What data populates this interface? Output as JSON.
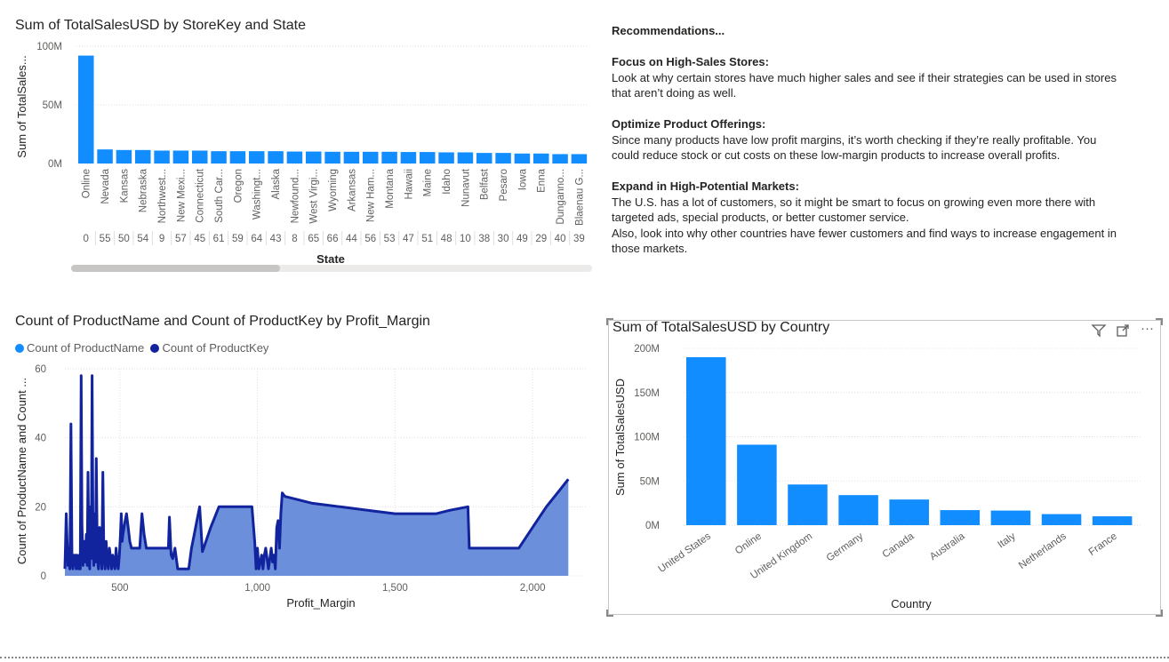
{
  "store_chart": {
    "chart_data": {
      "type": "bar",
      "title": "Sum of TotalSalesUSD by StoreKey and State",
      "xlabel": "State",
      "ylabel": "Sum of TotalSales...",
      "ylim": [
        0,
        100
      ],
      "y_ticks": [
        "100M",
        "50M",
        "0M"
      ],
      "categories": [
        "Online",
        "Nevada",
        "Kansas",
        "Nebraska",
        "Northwest...",
        "New Mexi...",
        "Connecticut",
        "South Car...",
        "Oregon",
        "Washingt...",
        "Alaska",
        "Newfound...",
        "West Virgi...",
        "Wyoming",
        "Arkansas",
        "New Ham...",
        "Montana",
        "Hawaii",
        "Maine",
        "Idaho",
        "Nunavut",
        "Belfast",
        "Pesaro",
        "Iowa",
        "Enna",
        "Dunganno...",
        "Blaenau G..."
      ],
      "store_keys": [
        "0",
        "55",
        "50",
        "54",
        "9",
        "57",
        "45",
        "61",
        "59",
        "64",
        "43",
        "8",
        "65",
        "66",
        "44",
        "56",
        "53",
        "47",
        "51",
        "48",
        "10",
        "38",
        "30",
        "49",
        "29",
        "40",
        "39"
      ],
      "values": [
        92,
        12,
        11.5,
        11.5,
        11,
        11,
        11,
        10.5,
        10.5,
        10.5,
        10.5,
        10.2,
        10.2,
        10,
        10,
        10,
        10,
        9.8,
        9.8,
        9.5,
        9.5,
        9,
        9,
        8.5,
        8.5,
        8,
        8
      ],
      "series_color": "#118dff",
      "grid": true
    }
  },
  "recommendations": {
    "title": "Recommendations...",
    "sections": [
      {
        "heading": "Focus on High-Sales Stores:",
        "lines": [
          "Look at why certain stores have much higher sales and see if their strategies can be used in stores",
          "that aren’t doing as well."
        ]
      },
      {
        "heading": "Optimize Product Offerings:",
        "lines": [
          "Since many products have low profit margins, it’s worth checking if they’re really profitable. You",
          "could reduce stock or cut costs on these low-margin products to increase overall profits."
        ]
      },
      {
        "heading": "Expand in High-Potential Markets:",
        "lines": [
          "The U.S. has a lot of customers, so it might be smart to focus on growing even more there with",
          "targeted ads, special products, or better customer service.",
          "Also, look into why other countries have fewer customers and find ways to increase engagement in",
          "those markets."
        ]
      }
    ]
  },
  "margin_chart": {
    "chart_data": {
      "type": "area",
      "title": "Count of ProductName and Count of ProductKey by Profit_Margin",
      "xlabel": "Profit_Margin",
      "ylabel": "Count of ProductName and Count ...",
      "xlim": [
        300,
        2200
      ],
      "ylim": [
        0,
        60
      ],
      "x_ticks": [
        500,
        1000,
        1500,
        2000
      ],
      "x_tick_labels": [
        "500",
        "1,000",
        "1,500",
        "2,000"
      ],
      "y_ticks": [
        0,
        20,
        40,
        60
      ],
      "legend_position": "top-left",
      "series": [
        {
          "name": "Count of ProductName",
          "color": "#118dff"
        },
        {
          "name": "Count of ProductKey",
          "color": "#12239e"
        }
      ],
      "x": [
        300,
        302,
        305,
        308,
        311,
        314,
        318,
        322,
        326,
        329,
        332,
        335,
        338,
        341,
        344,
        347,
        350,
        353,
        356,
        359,
        362,
        366,
        370,
        374,
        378,
        381,
        384,
        387,
        390,
        393,
        396,
        399,
        402,
        405,
        408,
        411,
        414,
        418,
        422,
        426,
        430,
        434,
        438,
        442,
        446,
        450,
        454,
        458,
        462,
        466,
        470,
        474,
        478,
        482,
        486,
        490,
        494,
        498,
        502,
        505,
        508,
        511,
        515,
        519,
        524,
        530,
        536,
        542,
        548,
        554,
        560,
        566,
        572,
        580,
        588,
        596,
        604,
        612,
        620,
        630,
        640,
        650,
        660,
        670,
        676,
        680,
        686,
        692,
        700,
        710,
        720,
        730,
        740,
        750,
        760,
        770,
        780,
        790,
        800,
        830,
        860,
        890,
        920,
        950,
        980,
        990,
        995,
        1000,
        1005,
        1010,
        1015,
        1020,
        1025,
        1030,
        1040,
        1050,
        1055,
        1060,
        1065,
        1070,
        1075,
        1080,
        1085,
        1090,
        1100,
        1150,
        1200,
        1300,
        1400,
        1500,
        1600,
        1650,
        1700,
        1765,
        1770,
        1800,
        1850,
        1900,
        1940,
        1950,
        2000,
        2050,
        2100,
        2130
      ],
      "values": [
        2,
        8,
        18,
        10,
        3,
        8,
        2,
        44,
        4,
        2,
        6,
        3,
        6,
        2,
        6,
        3,
        2,
        6,
        2,
        58,
        15,
        3,
        10,
        4,
        12,
        3,
        30,
        7,
        2,
        20,
        5,
        58,
        12,
        3,
        18,
        4,
        34,
        5,
        2,
        14,
        6,
        2,
        30,
        5,
        2,
        10,
        4,
        2,
        8,
        5,
        2,
        6,
        4,
        2,
        8,
        4,
        2,
        6,
        12,
        18,
        10,
        12,
        14,
        16,
        18,
        14,
        10,
        8,
        8,
        8,
        8,
        8,
        8,
        18,
        12,
        8,
        8,
        8,
        8,
        8,
        8,
        8,
        8,
        8,
        8,
        17,
        6,
        5,
        8,
        2,
        2,
        2,
        2,
        2,
        8,
        12,
        16,
        20,
        7,
        14,
        20,
        20,
        20,
        20,
        20,
        10,
        2,
        8,
        2,
        4,
        6,
        2,
        6,
        8,
        2,
        8,
        4,
        6,
        2,
        14,
        16,
        8,
        18,
        24,
        23,
        22,
        21,
        20,
        19,
        18,
        18,
        18,
        19,
        20,
        8,
        8,
        8,
        8,
        8,
        8,
        14,
        20,
        25,
        28
      ]
    }
  },
  "country_chart": {
    "chart_data": {
      "type": "bar",
      "title": "Sum of TotalSalesUSD by Country",
      "xlabel": "Country",
      "ylabel": "Sum of TotalSalesUSD",
      "ylim": [
        0,
        200
      ],
      "y_ticks": [
        "200M",
        "150M",
        "100M",
        "50M",
        "0M"
      ],
      "categories": [
        "United States",
        "Online",
        "United Kingdom",
        "Germany",
        "Canada",
        "Australia",
        "Italy",
        "Netherlands",
        "France"
      ],
      "values": [
        190,
        91,
        46,
        34,
        29,
        17,
        16.5,
        12.5,
        10
      ],
      "series_color": "#118dff",
      "grid": true
    },
    "header_icons": [
      "filter-icon",
      "focus-mode-icon",
      "more-options-icon"
    ]
  }
}
